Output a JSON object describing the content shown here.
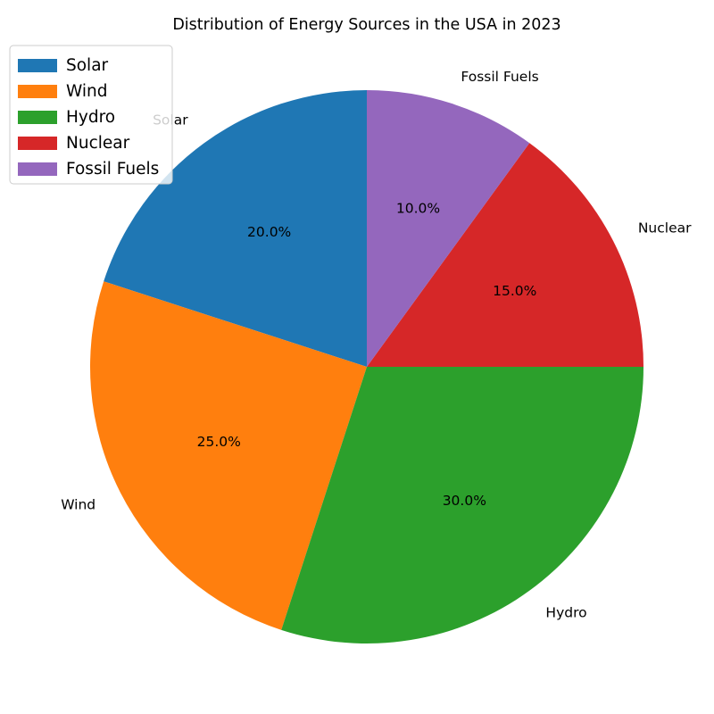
{
  "chart_data": {
    "type": "pie",
    "title": "Distribution of Energy Sources in the USA in 2023",
    "categories": [
      "Solar",
      "Wind",
      "Hydro",
      "Nuclear",
      "Fossil Fuels"
    ],
    "values": [
      20,
      25,
      30,
      15,
      10
    ],
    "percent_labels": [
      "20.0%",
      "25.0%",
      "30.0%",
      "15.0%",
      "10.0%"
    ],
    "colors": [
      "#1f77b4",
      "#ff7f0e",
      "#2ca02c",
      "#d62728",
      "#9467bd"
    ],
    "start_angle_deg": 90,
    "direction": "counterclockwise",
    "legend": {
      "placement": "top-left",
      "entries": [
        "Solar",
        "Wind",
        "Hydro",
        "Nuclear",
        "Fossil Fuels"
      ]
    }
  }
}
